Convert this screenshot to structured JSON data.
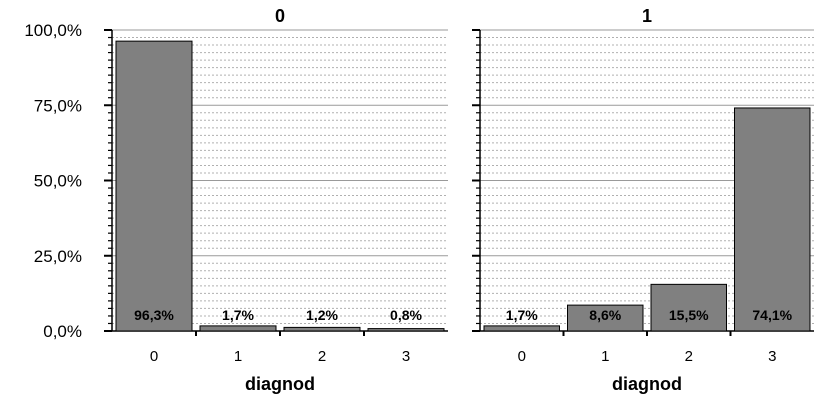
{
  "chart_data": {
    "type": "bar",
    "colors": {
      "bar": "#808080",
      "bar_stroke": "#000000",
      "grid_major": "#9a9a9a",
      "grid_minor": "#b0b0b0"
    },
    "ylim": [
      0,
      100
    ],
    "y_ticks": [
      {
        "value": 0,
        "label": "0,0%"
      },
      {
        "value": 25,
        "label": "25,0%"
      },
      {
        "value": 50,
        "label": "50,0%"
      },
      {
        "value": 75,
        "label": "75,0%"
      },
      {
        "value": 100,
        "label": "100,0%"
      }
    ],
    "categories": [
      "0",
      "1",
      "2",
      "3"
    ],
    "xlabel": "diagnod",
    "panels": [
      {
        "title": "0",
        "values": [
          96.3,
          1.7,
          1.2,
          0.8
        ],
        "labels": [
          "96,3%",
          "1,7%",
          "1,2%",
          "0,8%"
        ]
      },
      {
        "title": "1",
        "values": [
          1.7,
          8.6,
          15.5,
          74.1
        ],
        "labels": [
          "1,7%",
          "8,6%",
          "15,5%",
          "74,1%"
        ]
      }
    ]
  }
}
